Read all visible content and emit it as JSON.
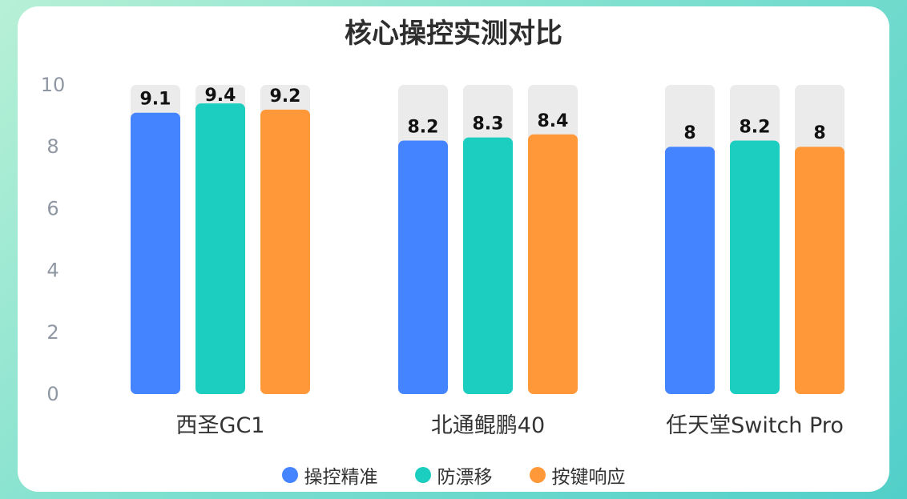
{
  "chart_data": {
    "type": "bar",
    "title": "核心操控实测对比",
    "categories": [
      "西圣GC1",
      "北通鲲鹏40",
      "任天堂Switch Pro"
    ],
    "series": [
      {
        "name": "操控精准",
        "color": "#4584FF",
        "values": [
          9.1,
          8.2,
          8
        ]
      },
      {
        "name": "防漂移",
        "color": "#1BCEC0",
        "values": [
          9.4,
          8.3,
          8.2
        ]
      },
      {
        "name": "按键响应",
        "color": "#FF9838",
        "values": [
          9.2,
          8.4,
          8
        ]
      }
    ],
    "ylim": [
      0,
      10
    ],
    "yticks": [
      0,
      2,
      4,
      6,
      8,
      10
    ],
    "track_color": "#EBEBEB",
    "legend_position": "bottom"
  }
}
